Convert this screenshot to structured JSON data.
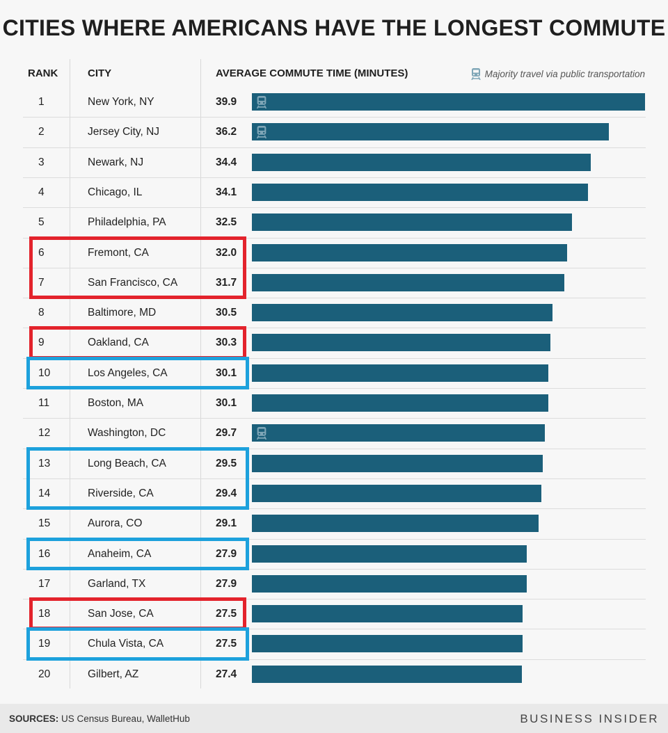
{
  "title": "CITIES WHERE AMERICANS HAVE THE LONGEST COMMUTE",
  "headers": {
    "rank": "RANK",
    "city": "CITY",
    "value": "AVERAGE COMMUTE TIME (MINUTES)"
  },
  "legend": {
    "label": "Majority travel via public transportation",
    "icon": "train-icon"
  },
  "colors": {
    "bar": "#1b5f7a",
    "highlight_red": "#e3232c",
    "highlight_blue": "#1da1dc",
    "icon": "#7fa6b7"
  },
  "chart_data": {
    "type": "bar",
    "orientation": "horizontal",
    "title": "CITIES WHERE AMERICANS HAVE THE LONGEST COMMUTE",
    "xlabel": "AVERAGE COMMUTE TIME (MINUTES)",
    "xlim": [
      0,
      39.9
    ],
    "grid": false,
    "rows": [
      {
        "rank": "1",
        "city": "New York, NY",
        "value": 39.9,
        "label": "39.9",
        "transit": true
      },
      {
        "rank": "2",
        "city": "Jersey City, NJ",
        "value": 36.2,
        "label": "36.2",
        "transit": true
      },
      {
        "rank": "3",
        "city": "Newark, NJ",
        "value": 34.4,
        "label": "34.4",
        "transit": false
      },
      {
        "rank": "4",
        "city": "Chicago, IL",
        "value": 34.1,
        "label": "34.1",
        "transit": false
      },
      {
        "rank": "5",
        "city": "Philadelphia, PA",
        "value": 32.5,
        "label": "32.5",
        "transit": false
      },
      {
        "rank": "6",
        "city": "Fremont, CA",
        "value": 32.0,
        "label": "32.0",
        "transit": false
      },
      {
        "rank": "7",
        "city": "San Francisco, CA",
        "value": 31.7,
        "label": "31.7",
        "transit": false
      },
      {
        "rank": "8",
        "city": "Baltimore, MD",
        "value": 30.5,
        "label": "30.5",
        "transit": false
      },
      {
        "rank": "9",
        "city": "Oakland, CA",
        "value": 30.3,
        "label": "30.3",
        "transit": false
      },
      {
        "rank": "10",
        "city": "Los Angeles, CA",
        "value": 30.1,
        "label": "30.1",
        "transit": false
      },
      {
        "rank": "11",
        "city": "Boston, MA",
        "value": 30.1,
        "label": "30.1",
        "transit": false
      },
      {
        "rank": "12",
        "city": "Washington, DC",
        "value": 29.7,
        "label": "29.7",
        "transit": true
      },
      {
        "rank": "13",
        "city": "Long Beach, CA",
        "value": 29.5,
        "label": "29.5",
        "transit": false
      },
      {
        "rank": "14",
        "city": "Riverside, CA",
        "value": 29.4,
        "label": "29.4",
        "transit": false
      },
      {
        "rank": "15",
        "city": "Aurora, CO",
        "value": 29.1,
        "label": "29.1",
        "transit": false
      },
      {
        "rank": "16",
        "city": "Anaheim, CA",
        "value": 27.9,
        "label": "27.9",
        "transit": false
      },
      {
        "rank": "17",
        "city": "Garland, TX",
        "value": 27.9,
        "label": "27.9",
        "transit": false
      },
      {
        "rank": "18",
        "city": "San Jose, CA",
        "value": 27.5,
        "label": "27.5",
        "transit": false
      },
      {
        "rank": "19",
        "city": "Chula Vista, CA",
        "value": 27.5,
        "label": "27.5",
        "transit": false
      },
      {
        "rank": "20",
        "city": "Gilbert, AZ",
        "value": 27.4,
        "label": "27.4",
        "transit": false
      }
    ],
    "highlights": [
      {
        "color": "red",
        "ranks": [
          "6",
          "7"
        ]
      },
      {
        "color": "red",
        "ranks": [
          "9"
        ]
      },
      {
        "color": "blue",
        "ranks": [
          "10"
        ]
      },
      {
        "color": "blue",
        "ranks": [
          "13",
          "14"
        ]
      },
      {
        "color": "blue",
        "ranks": [
          "16"
        ]
      },
      {
        "color": "red",
        "ranks": [
          "18"
        ]
      },
      {
        "color": "blue",
        "ranks": [
          "19"
        ]
      }
    ]
  },
  "footer": {
    "sources_label": "SOURCES:",
    "sources_text": " US Census Bureau, WalletHub",
    "brand": "BUSINESS INSIDER"
  }
}
